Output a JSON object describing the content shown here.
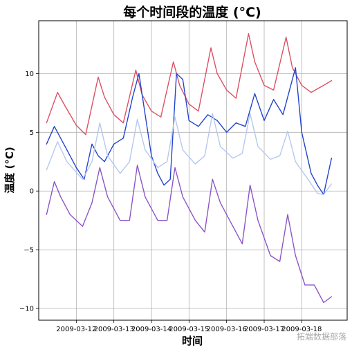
{
  "chart_data": {
    "type": "line",
    "title": "每个时间段的温度 (°C)",
    "xlabel": "时间",
    "ylabel": "温度 (°C)",
    "x_ticks": [
      "2009-03-12",
      "2009-03-13",
      "2009-03-14",
      "2009-03-15",
      "2009-03-16",
      "2009-03-17",
      "2009-03-18"
    ],
    "y_ticks": [
      -10,
      -5,
      0,
      5,
      10
    ],
    "y_tick_labels": [
      "−10",
      "−5",
      "0",
      "5",
      "10"
    ],
    "xlim": [
      "2009-03-11 00:00",
      "2009-03-19 05:00"
    ],
    "ylim": [
      -11,
      14.5
    ],
    "grid": true,
    "series": [
      {
        "color": "#dc5064",
        "x": [
          "2009-03-11 05:00",
          "2009-03-11 12:00",
          "2009-03-11 17:00",
          "2009-03-12 00:00",
          "2009-03-12 06:00",
          "2009-03-12 14:00",
          "2009-03-12 18:00",
          "2009-03-13 00:00",
          "2009-03-13 06:00",
          "2009-03-13 14:00",
          "2009-03-13 18:00",
          "2009-03-14 00:00",
          "2009-03-14 06:00",
          "2009-03-14 14:00",
          "2009-03-14 18:00",
          "2009-03-15 00:00",
          "2009-03-15 06:00",
          "2009-03-15 14:00",
          "2009-03-15 18:00",
          "2009-03-16 00:00",
          "2009-03-16 06:00",
          "2009-03-16 14:00",
          "2009-03-16 18:00",
          "2009-03-17 00:00",
          "2009-03-17 06:00",
          "2009-03-17 14:00",
          "2009-03-17 18:00",
          "2009-03-18 00:00",
          "2009-03-18 06:00",
          "2009-03-18 14:00",
          "2009-03-18 19:00"
        ],
        "y": [
          5.8,
          8.4,
          7.2,
          5.6,
          4.8,
          9.7,
          8.0,
          6.5,
          5.8,
          10.3,
          8.2,
          6.8,
          6.3,
          11.0,
          9.0,
          7.4,
          6.8,
          12.2,
          10.0,
          8.6,
          7.9,
          13.4,
          11.0,
          9.0,
          8.6,
          13.1,
          10.5,
          9.0,
          8.4,
          9.0,
          9.4
        ]
      },
      {
        "color": "#2244cc",
        "x": [
          "2009-03-11 05:00",
          "2009-03-11 10:00",
          "2009-03-11 14:00",
          "2009-03-11 18:00",
          "2009-03-12 00:00",
          "2009-03-12 05:00",
          "2009-03-12 10:00",
          "2009-03-12 14:00",
          "2009-03-12 18:00",
          "2009-03-13 00:00",
          "2009-03-13 06:00",
          "2009-03-13 12:00",
          "2009-03-13 16:00",
          "2009-03-13 20:00",
          "2009-03-14 00:00",
          "2009-03-14 04:00",
          "2009-03-14 08:00",
          "2009-03-14 12:00",
          "2009-03-14 16:00",
          "2009-03-14 20:00",
          "2009-03-15 00:00",
          "2009-03-15 06:00",
          "2009-03-15 12:00",
          "2009-03-15 18:00",
          "2009-03-16 00:00",
          "2009-03-16 06:00",
          "2009-03-16 12:00",
          "2009-03-16 18:00",
          "2009-03-17 00:00",
          "2009-03-17 06:00",
          "2009-03-17 12:00",
          "2009-03-17 16:00",
          "2009-03-17 20:00",
          "2009-03-18 00:00",
          "2009-03-18 06:00",
          "2009-03-18 10:00",
          "2009-03-18 14:00",
          "2009-03-18 19:00"
        ],
        "y": [
          4.0,
          5.5,
          4.5,
          3.5,
          2.0,
          1.0,
          4.0,
          3.0,
          2.5,
          4.0,
          4.5,
          8.0,
          10.0,
          6.5,
          3.0,
          1.5,
          0.5,
          1.0,
          10.0,
          9.5,
          6.0,
          5.5,
          6.5,
          6.0,
          5.0,
          5.8,
          5.5,
          8.3,
          6.0,
          7.8,
          6.5,
          8.5,
          10.5,
          5.0,
          1.5,
          0.5,
          -0.3,
          2.8
        ]
      },
      {
        "color": "#b5c8f0",
        "x": [
          "2009-03-11 05:00",
          "2009-03-11 12:00",
          "2009-03-11 18:00",
          "2009-03-12 04:00",
          "2009-03-12 10:00",
          "2009-03-12 15:00",
          "2009-03-12 20:00",
          "2009-03-13 04:00",
          "2009-03-13 10:00",
          "2009-03-13 15:00",
          "2009-03-13 20:00",
          "2009-03-14 04:00",
          "2009-03-14 10:00",
          "2009-03-14 15:00",
          "2009-03-14 20:00",
          "2009-03-15 04:00",
          "2009-03-15 10:00",
          "2009-03-15 15:00",
          "2009-03-15 20:00",
          "2009-03-16 04:00",
          "2009-03-16 10:00",
          "2009-03-16 15:00",
          "2009-03-16 20:00",
          "2009-03-17 04:00",
          "2009-03-17 10:00",
          "2009-03-17 15:00",
          "2009-03-17 20:00",
          "2009-03-18 04:00",
          "2009-03-18 10:00",
          "2009-03-18 14:00",
          "2009-03-18 19:00"
        ],
        "y": [
          1.8,
          4.2,
          2.5,
          1.0,
          2.5,
          5.8,
          3.0,
          1.5,
          2.5,
          6.1,
          3.5,
          2.0,
          2.5,
          6.3,
          3.5,
          2.3,
          3.0,
          6.6,
          3.8,
          2.8,
          3.2,
          6.6,
          3.8,
          2.7,
          3.0,
          5.1,
          2.5,
          1.0,
          -0.2,
          -0.3,
          0.6
        ]
      },
      {
        "color": "#8b55c6",
        "x": [
          "2009-03-11 05:00",
          "2009-03-11 10:00",
          "2009-03-11 14:00",
          "2009-03-11 20:00",
          "2009-03-12 04:00",
          "2009-03-12 10:00",
          "2009-03-12 15:00",
          "2009-03-12 20:00",
          "2009-03-13 04:00",
          "2009-03-13 10:00",
          "2009-03-13 15:00",
          "2009-03-13 20:00",
          "2009-03-14 04:00",
          "2009-03-14 10:00",
          "2009-03-14 15:00",
          "2009-03-14 20:00",
          "2009-03-15 04:00",
          "2009-03-15 10:00",
          "2009-03-15 15:00",
          "2009-03-15 20:00",
          "2009-03-16 04:00",
          "2009-03-16 10:00",
          "2009-03-16 15:00",
          "2009-03-16 20:00",
          "2009-03-17 04:00",
          "2009-03-17 10:00",
          "2009-03-17 15:00",
          "2009-03-17 20:00",
          "2009-03-18 02:00",
          "2009-03-18 08:00",
          "2009-03-18 14:00",
          "2009-03-18 19:00"
        ],
        "y": [
          -2.0,
          0.8,
          -0.5,
          -2.0,
          -3.0,
          -1.0,
          2.0,
          -0.5,
          -2.5,
          -2.5,
          2.2,
          -0.5,
          -2.5,
          -2.5,
          2.0,
          -0.5,
          -2.5,
          -3.5,
          1.0,
          -1.0,
          -3.0,
          -4.5,
          0.5,
          -2.5,
          -5.5,
          -6.0,
          -2.0,
          -5.5,
          -8.0,
          -8.0,
          -9.5,
          -9.0
        ]
      }
    ]
  },
  "watermark": "拓端数据部落"
}
